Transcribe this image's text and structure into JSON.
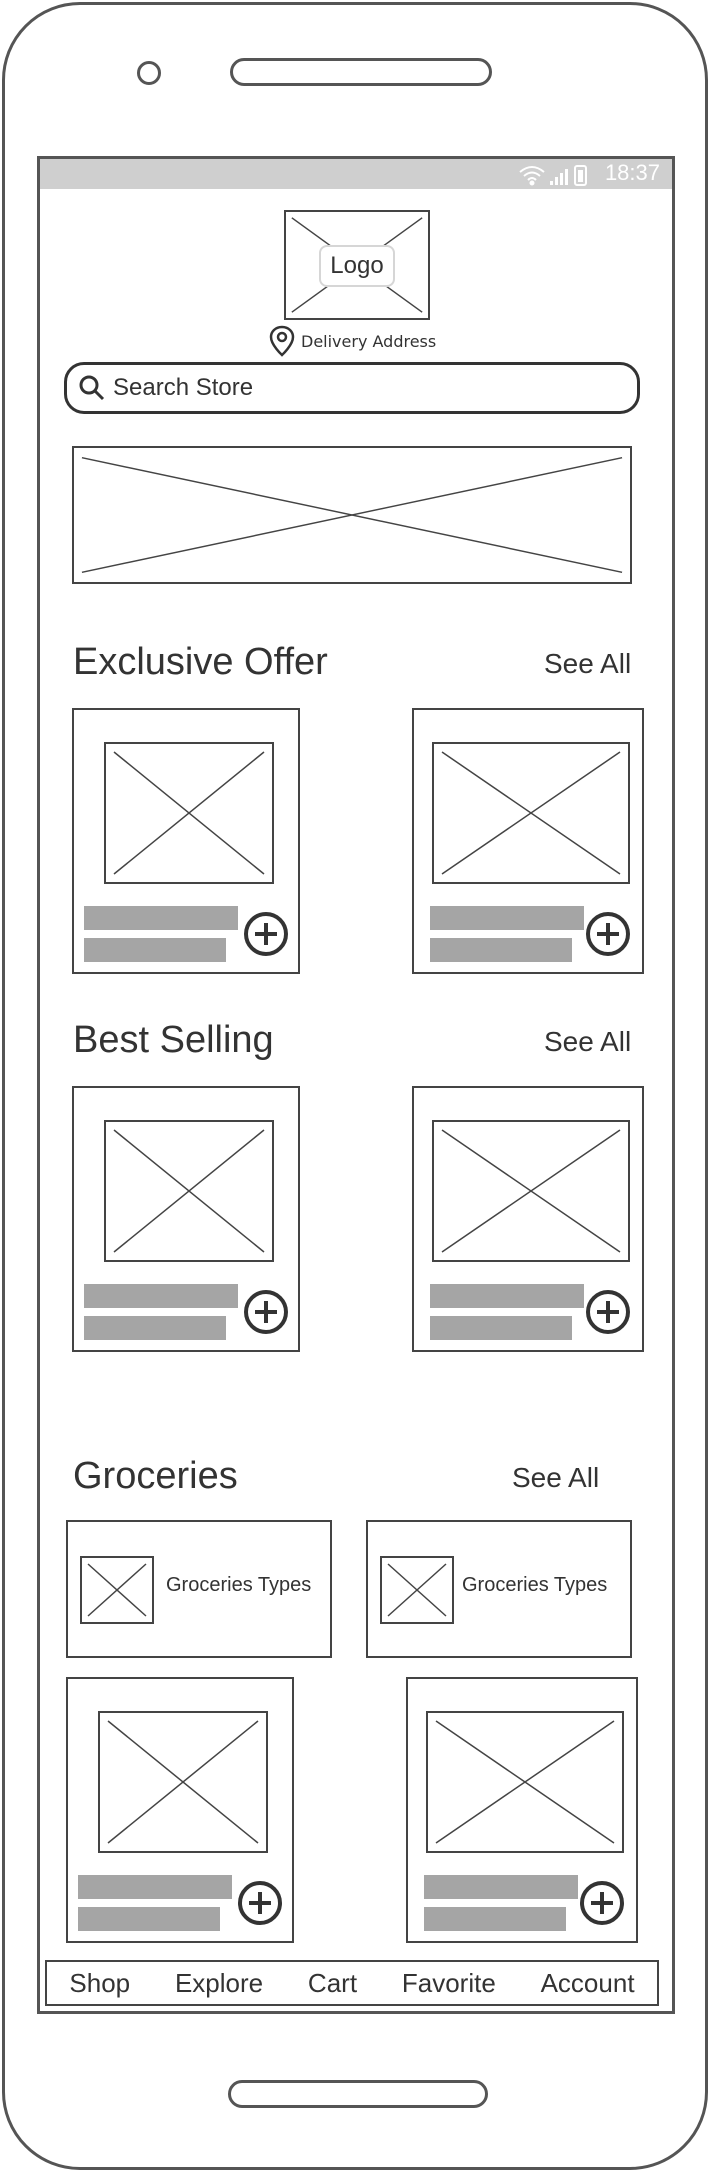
{
  "status_bar": {
    "time": "18:37",
    "icons": [
      "wifi-icon",
      "signal-icon",
      "battery-icon"
    ]
  },
  "header": {
    "logo_label": "Logo",
    "delivery_label": "Delivery Address",
    "delivery_icon": "location-pin-icon"
  },
  "search": {
    "placeholder": "Search Store",
    "icon": "search-icon"
  },
  "sections": {
    "exclusive_offer": {
      "title": "Exclusive Offer",
      "see_all": "See All"
    },
    "best_selling": {
      "title": "Best Selling",
      "see_all": "See All"
    },
    "groceries": {
      "title": "Groceries",
      "see_all": "See All",
      "types": [
        "Groceries Types",
        "Groceries Types"
      ]
    }
  },
  "bottom_nav": {
    "items": [
      "Shop",
      "Explore",
      "Cart",
      "Favorite",
      "Account"
    ]
  },
  "colors": {
    "outline": "#444444",
    "placeholder_bar": "#a5a5a5",
    "status_bar": "#cfcfcf"
  }
}
